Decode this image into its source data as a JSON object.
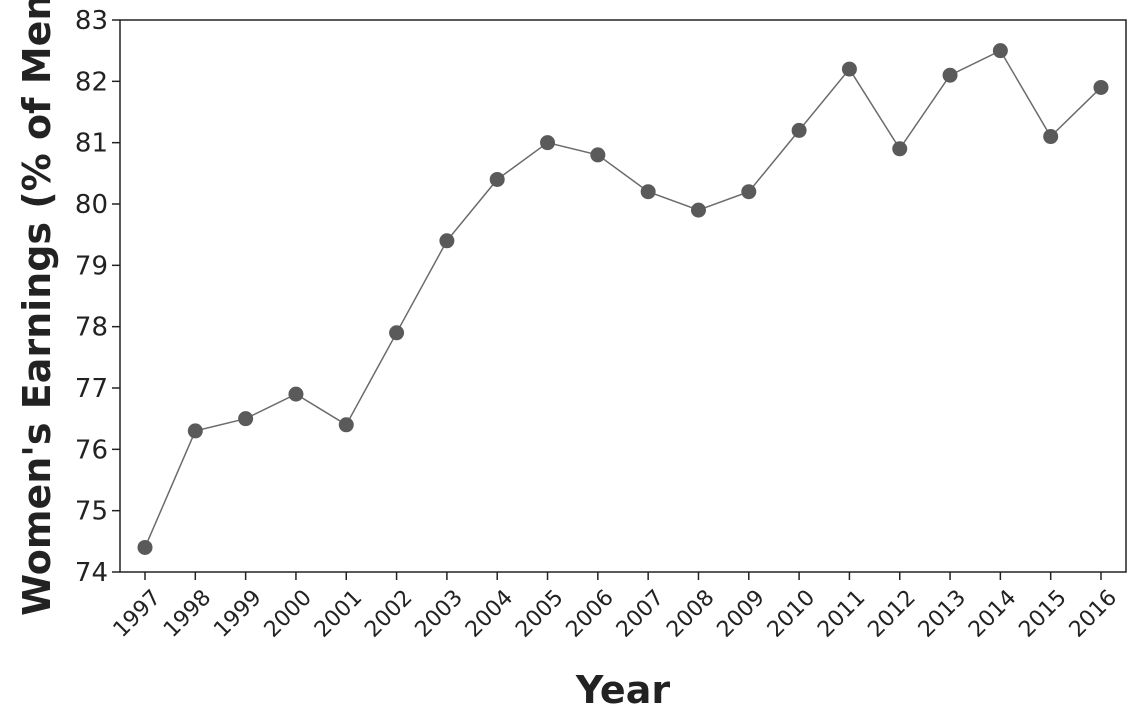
{
  "chart_data": {
    "type": "line",
    "xlabel": "Year",
    "ylabel": "Women's Earnings (% of Men)",
    "ylim": [
      74,
      83
    ],
    "yticks": [
      74,
      75,
      76,
      77,
      78,
      79,
      80,
      81,
      82,
      83
    ],
    "grid": false,
    "categories": [
      "1997",
      "1998",
      "1999",
      "2000",
      "2001",
      "2002",
      "2003",
      "2004",
      "2005",
      "2006",
      "2007",
      "2008",
      "2009",
      "2010",
      "2011",
      "2012",
      "2013",
      "2014",
      "2015",
      "2016"
    ],
    "values": [
      74.4,
      76.3,
      76.5,
      76.9,
      76.4,
      77.9,
      79.4,
      80.4,
      81.0,
      80.8,
      80.2,
      79.9,
      80.2,
      81.2,
      82.2,
      80.9,
      82.1,
      82.5,
      81.1,
      81.9
    ],
    "colors": {
      "line": "#6b6b6b",
      "marker": "#5a5a5a",
      "axis": "#222222"
    }
  }
}
